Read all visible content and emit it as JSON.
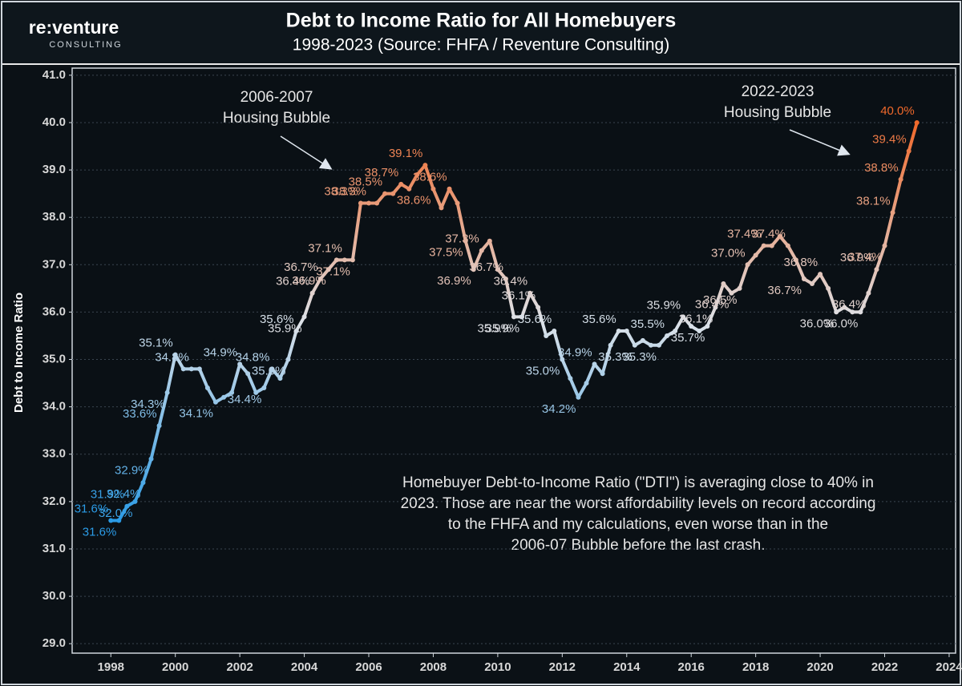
{
  "logo": {
    "name": "re:venture",
    "tagline": "CONSULTING"
  },
  "chart_data": {
    "type": "line",
    "title": "Debt to Income Ratio for All Homebuyers",
    "subtitle": "1998-2023 (Source: FHFA / Reventure Consulting)",
    "y_label": "Debt to Income Ratio",
    "x": [
      1998,
      1998.25,
      1998.5,
      1998.75,
      1999,
      1999.25,
      1999.5,
      1999.75,
      2000,
      2000.25,
      2000.5,
      2000.75,
      2001,
      2001.25,
      2001.5,
      2001.75,
      2002,
      2002.25,
      2002.5,
      2002.75,
      2003,
      2003.25,
      2003.5,
      2003.75,
      2004,
      2004.25,
      2004.5,
      2004.75,
      2005,
      2005.25,
      2005.5,
      2005.75,
      2006,
      2006.25,
      2006.5,
      2006.75,
      2007,
      2007.25,
      2007.5,
      2007.75,
      2008,
      2008.25,
      2008.5,
      2008.75,
      2009,
      2009.25,
      2009.5,
      2009.75,
      2010,
      2010.25,
      2010.5,
      2010.75,
      2011,
      2011.25,
      2011.5,
      2011.75,
      2012,
      2012.25,
      2012.5,
      2012.75,
      2013,
      2013.25,
      2013.5,
      2013.75,
      2014,
      2014.25,
      2014.5,
      2014.75,
      2015,
      2015.25,
      2015.5,
      2015.75,
      2016,
      2016.25,
      2016.5,
      2016.75,
      2017,
      2017.25,
      2017.5,
      2017.75,
      2018,
      2018.25,
      2018.5,
      2018.75,
      2019,
      2019.25,
      2019.5,
      2019.75,
      2020,
      2020.25,
      2020.5,
      2020.75,
      2021,
      2021.25,
      2021.5,
      2021.75,
      2022,
      2022.25,
      2022.5,
      2022.75,
      2023
    ],
    "values": [
      31.6,
      31.6,
      31.9,
      32.0,
      32.4,
      32.9,
      33.6,
      34.3,
      35.1,
      34.8,
      34.8,
      34.8,
      34.4,
      34.1,
      34.2,
      34.3,
      34.9,
      34.7,
      34.3,
      34.4,
      34.8,
      34.6,
      35.0,
      35.6,
      35.9,
      36.4,
      36.7,
      36.9,
      37.1,
      37.1,
      37.1,
      38.3,
      38.3,
      38.3,
      38.5,
      38.5,
      38.7,
      38.6,
      38.9,
      39.1,
      38.6,
      38.2,
      38.6,
      38.3,
      37.5,
      36.9,
      37.3,
      37.5,
      36.9,
      36.7,
      35.9,
      35.9,
      36.4,
      36.1,
      35.5,
      35.6,
      35.0,
      34.6,
      34.2,
      34.5,
      34.9,
      34.7,
      35.3,
      35.6,
      35.6,
      35.3,
      35.4,
      35.3,
      35.3,
      35.5,
      35.6,
      35.9,
      35.7,
      35.6,
      35.7,
      36.1,
      36.6,
      36.4,
      36.5,
      37.0,
      37.2,
      37.4,
      37.4,
      37.6,
      37.4,
      37.1,
      36.7,
      36.6,
      36.8,
      36.5,
      36.0,
      36.1,
      36.0,
      36.0,
      36.4,
      36.9,
      37.4,
      38.1,
      38.8,
      39.4,
      40.0
    ],
    "value_labels": [
      "31.6%",
      "31.6%",
      "31.9%",
      "32.0%",
      "32.4%",
      "32.9%",
      "33.6%",
      "34.3%",
      "35.1%",
      null,
      "34.8%",
      null,
      null,
      "34.1%",
      null,
      null,
      "34.9%",
      null,
      null,
      "34.4%",
      "34.8%",
      null,
      "35.0%",
      "35.6%",
      "35.9%",
      "36.4%",
      "36.7%",
      "36.9%",
      null,
      "37.1%",
      "37.1%",
      "38.3%",
      "38.3%",
      null,
      "38.5%",
      null,
      "38.7%",
      null,
      null,
      "39.1%",
      "38.6%",
      null,
      "38.6%",
      null,
      "37.5%",
      "36.9%",
      "37.3%",
      null,
      null,
      "36.7%",
      "35.9%",
      "35.9%",
      "36.4%",
      "36.1%",
      null,
      "35.6%",
      "35.0%",
      null,
      "34.2%",
      null,
      "34.9%",
      null,
      null,
      "35.6%",
      null,
      "35.3%",
      null,
      null,
      "35.3%",
      "35.5%",
      null,
      "35.9%",
      null,
      null,
      "35.7%",
      "36.1%",
      null,
      "36.4%",
      "36.5%",
      "37.0%",
      null,
      "37.4%",
      null,
      null,
      "37.4%",
      null,
      "36.7%",
      null,
      "36.8%",
      null,
      "36.0%",
      null,
      null,
      "36.0%",
      "36.4%",
      "36.9%",
      "37.4%",
      "38.1%",
      "38.8%",
      "39.4%",
      "40.0%"
    ],
    "colors": [
      "#2b9be6",
      "#dde2e8",
      "#f0692b"
    ],
    "xlim": [
      1996.8,
      2024.2
    ],
    "xticks": [
      1998,
      2000,
      2002,
      2004,
      2006,
      2008,
      2010,
      2012,
      2014,
      2016,
      2018,
      2020,
      2022,
      2024
    ],
    "ylim": [
      28.8,
      41.15
    ],
    "yticks": [
      {
        "value": 29,
        "label": "29.0"
      },
      {
        "value": 30,
        "label": "30.0"
      },
      {
        "value": 31,
        "label": "31.0"
      },
      {
        "value": 32,
        "label": "32.0"
      },
      {
        "value": 33,
        "label": "33.0"
      },
      {
        "value": 34,
        "label": "34.0"
      },
      {
        "value": 35,
        "label": "35.0"
      },
      {
        "value": 36,
        "label": "36.0"
      },
      {
        "value": 37,
        "label": "37.0"
      },
      {
        "value": 38,
        "label": "38.0"
      },
      {
        "value": 39,
        "label": "39.0"
      },
      {
        "value": 40,
        "label": "40.0"
      },
      {
        "value": 41,
        "label": "41.0"
      }
    ],
    "grid": true,
    "annotations": [
      {
        "lines": [
          "2006-2007",
          "Housing Bubble"
        ]
      },
      {
        "lines": [
          "2022-2023",
          "Housing Bubble"
        ]
      },
      {
        "lines": [
          "Homebuyer Debt-to-Income Ratio (\"DTI\") is averaging close to 40% in",
          "2023. Those are near the worst affordability levels on record according",
          "to the FHFA and my calculations, even worse than in the",
          "2006-07 Bubble before the last crash."
        ]
      }
    ]
  }
}
